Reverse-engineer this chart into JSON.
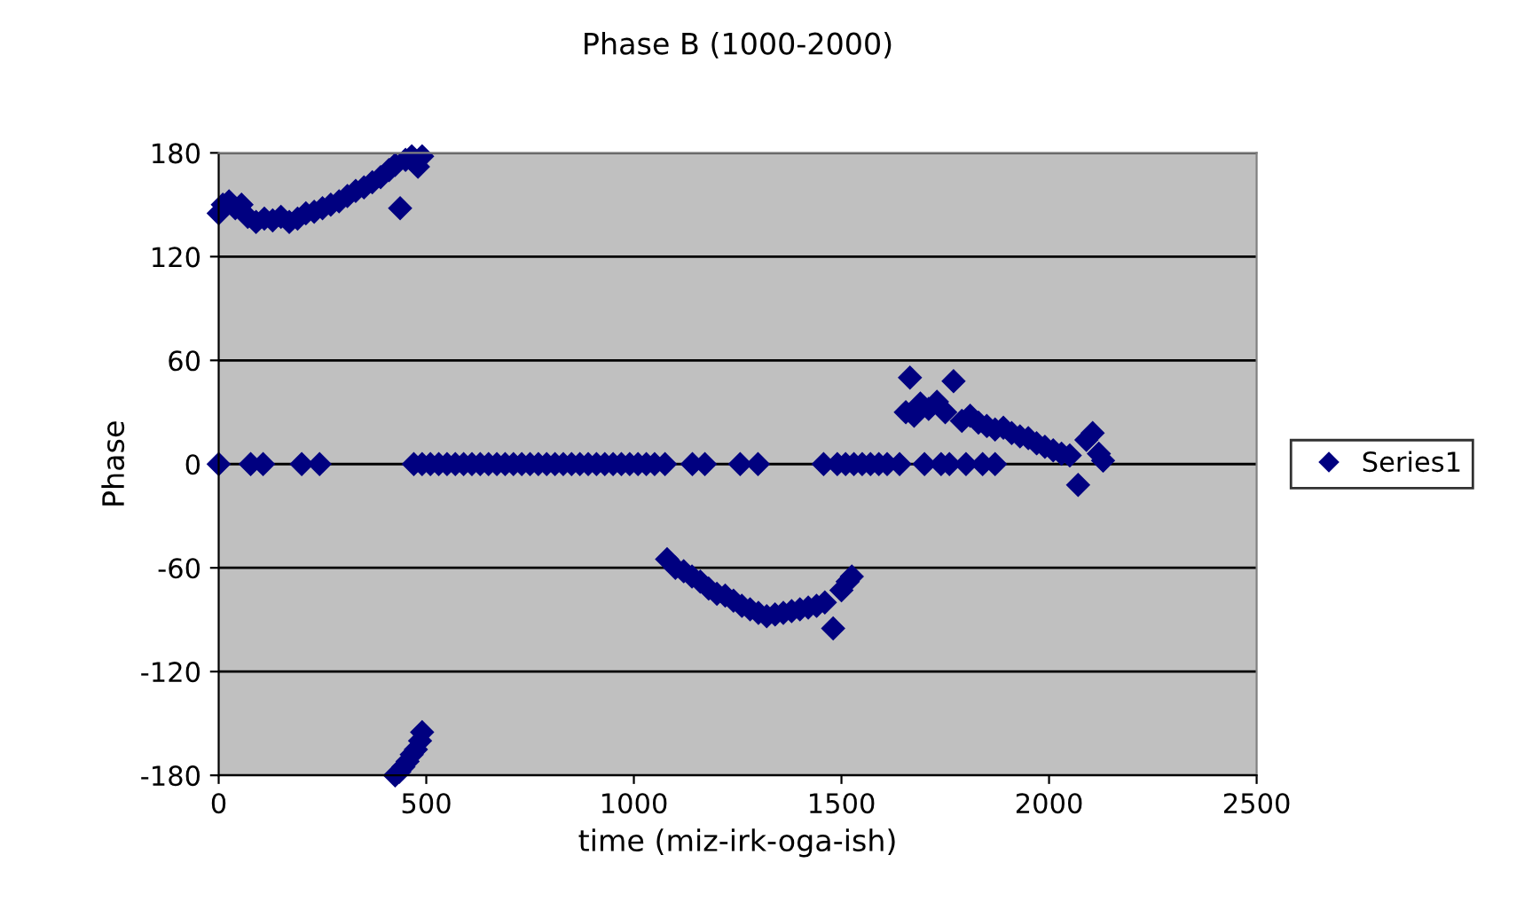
{
  "chart_data": {
    "type": "scatter",
    "title": "Phase B (1000-2000)",
    "xlabel": "time (miz-irk-oga-ish)",
    "ylabel": "Phase",
    "xlim": [
      0,
      2500
    ],
    "xticks": [
      0,
      500,
      1000,
      1500,
      2000,
      2500
    ],
    "ylim": [
      -180,
      180
    ],
    "yticks": [
      -180,
      -120,
      -60,
      0,
      60,
      120,
      180
    ],
    "grid": "y",
    "legend": "right",
    "marker": "diamond",
    "series": [
      {
        "name": "Series1",
        "color": "#000080",
        "x": [
          0,
          77,
          107,
          200,
          243,
          470,
          490,
          510,
          530,
          550,
          570,
          590,
          610,
          630,
          650,
          670,
          690,
          710,
          730,
          750,
          770,
          790,
          810,
          830,
          850,
          870,
          890,
          910,
          930,
          950,
          970,
          990,
          1010,
          1030,
          1050,
          1075,
          1141,
          1171,
          1256,
          1299,
          1457,
          1490,
          1510,
          1530,
          1550,
          1570,
          1590,
          1610,
          1640,
          1700,
          1740,
          1760,
          1800,
          1840,
          1870,
          0,
          10,
          25,
          40,
          55,
          70,
          90,
          110,
          130,
          150,
          170,
          190,
          210,
          230,
          250,
          270,
          290,
          310,
          330,
          350,
          370,
          390,
          410,
          425,
          437,
          450,
          465,
          480,
          490,
          425,
          435,
          445,
          455,
          465,
          475,
          485,
          490,
          1080,
          1100,
          1120,
          1140,
          1160,
          1180,
          1200,
          1220,
          1240,
          1260,
          1280,
          1300,
          1320,
          1340,
          1360,
          1380,
          1400,
          1420,
          1440,
          1460,
          1480,
          1500,
          1515,
          1525,
          1655,
          1665,
          1675,
          1690,
          1710,
          1730,
          1750,
          1770,
          1790,
          1810,
          1830,
          1850,
          1870,
          1890,
          1910,
          1930,
          1950,
          1970,
          1990,
          2010,
          2030,
          2050,
          2070,
          2090,
          2105,
          2120,
          2130
        ],
        "values": [
          0,
          0,
          0,
          0,
          0,
          0,
          0,
          0,
          0,
          0,
          0,
          0,
          0,
          0,
          0,
          0,
          0,
          0,
          0,
          0,
          0,
          0,
          0,
          0,
          0,
          0,
          0,
          0,
          0,
          0,
          0,
          0,
          0,
          0,
          0,
          0,
          0,
          0,
          0,
          0,
          0,
          0,
          0,
          0,
          0,
          0,
          0,
          0,
          0,
          0,
          0,
          0,
          0,
          0,
          0,
          145,
          150,
          152,
          148,
          150,
          143,
          140,
          142,
          141,
          143,
          140,
          142,
          145,
          146,
          148,
          150,
          152,
          155,
          158,
          160,
          163,
          166,
          170,
          173,
          148,
          176,
          178,
          172,
          178,
          -180,
          -178,
          -175,
          -172,
          -168,
          -165,
          -160,
          -155,
          -55,
          -60,
          -62,
          -65,
          -68,
          -72,
          -75,
          -76,
          -79,
          -82,
          -84,
          -86,
          -88,
          -87,
          -86,
          -85,
          -84,
          -83,
          -82,
          -80,
          -95,
          -73,
          -68,
          -65,
          30,
          50,
          28,
          35,
          32,
          36,
          30,
          48,
          25,
          28,
          24,
          22,
          20,
          21,
          18,
          16,
          15,
          12,
          10,
          8,
          6,
          5,
          -12,
          14,
          18,
          6,
          2
        ]
      }
    ]
  }
}
